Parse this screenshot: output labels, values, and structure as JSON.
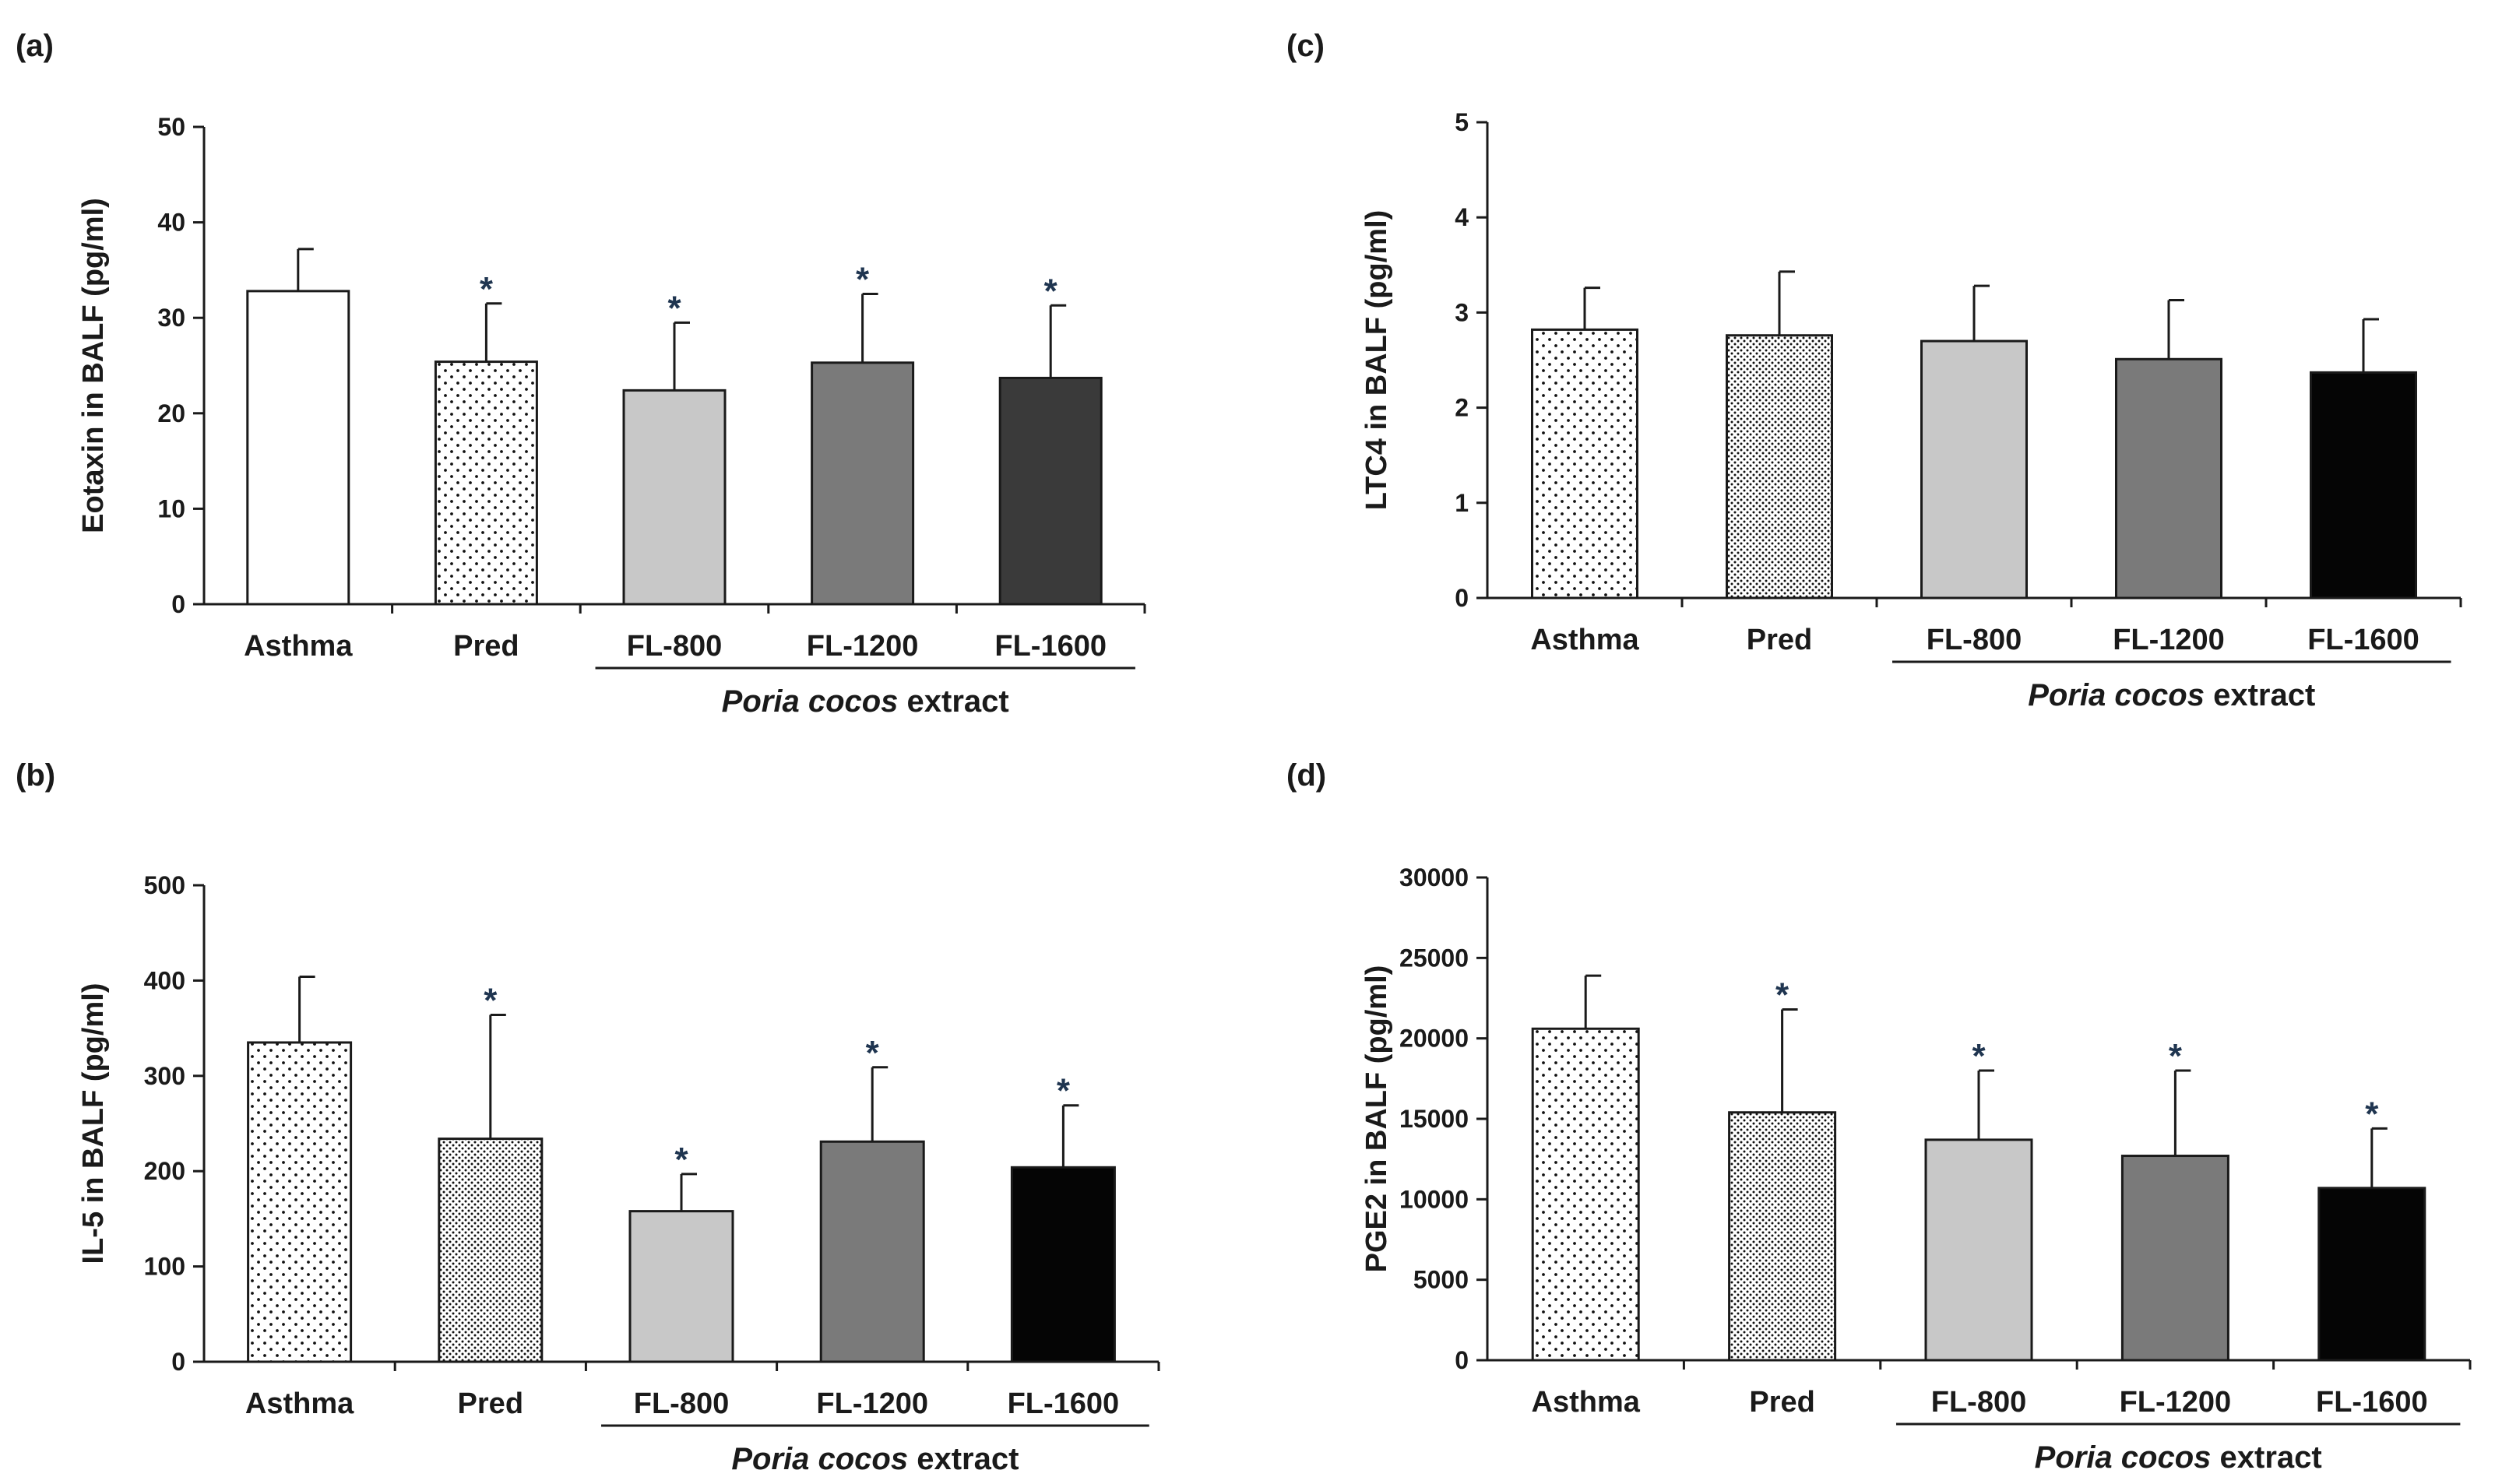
{
  "figure": {
    "groups": [
      "Asthma",
      "Pred",
      "FL-800",
      "FL-1200",
      "FL-1600"
    ],
    "extract_label_italic": "Poria cocos",
    "extract_label_rest": " extract",
    "significance_marker": "*",
    "colors": {
      "white": "#ffffff",
      "light_gray": "#c8c8c8",
      "mid_gray": "#7a7a7a",
      "dark_gray": "#3a3a3a",
      "black": "#050505",
      "star": "#1f3550"
    }
  },
  "chart_data": [
    {
      "panel": "(a)",
      "type": "bar",
      "ylabel": "Eotaxin in BALF (pg/ml)",
      "ylim": [
        0,
        50
      ],
      "yticks": [
        0,
        10,
        20,
        30,
        40,
        50
      ],
      "ytick_labels": [
        "0",
        "10",
        "20",
        "30",
        "40",
        "50"
      ],
      "categories": [
        "Asthma",
        "Pred",
        "FL-800",
        "FL-1200",
        "FL-1600"
      ],
      "values": [
        32.8,
        25.4,
        22.4,
        25.3,
        23.7
      ],
      "errors": [
        4.4,
        6.1,
        7.1,
        7.2,
        7.6
      ],
      "significant": [
        false,
        true,
        true,
        true,
        true
      ],
      "fills": [
        "white",
        "dots_sparse",
        "light_gray",
        "mid_gray",
        "dark_gray"
      ]
    },
    {
      "panel": "(b)",
      "type": "bar",
      "ylabel": "IL-5 in BALF (pg/ml)",
      "ylim": [
        0,
        500
      ],
      "yticks": [
        0,
        100,
        200,
        300,
        400,
        500
      ],
      "ytick_labels": [
        "0",
        "100",
        "200",
        "300",
        "400",
        "500"
      ],
      "categories": [
        "Asthma",
        "Pred",
        "FL-800",
        "FL-1200",
        "FL-1600"
      ],
      "values": [
        335,
        234,
        158,
        231,
        204
      ],
      "errors": [
        69,
        130,
        39,
        78,
        65
      ],
      "significant": [
        false,
        true,
        true,
        true,
        true
      ],
      "fills": [
        "dots_sparse",
        "dots_dense",
        "light_gray",
        "mid_gray",
        "black"
      ]
    },
    {
      "panel": "(c)",
      "type": "bar",
      "ylabel": "LTC4 in BALF (pg/ml)",
      "ylim": [
        0,
        5
      ],
      "yticks": [
        0,
        1,
        2,
        3,
        4,
        5
      ],
      "ytick_labels": [
        "0",
        "1",
        "2",
        "3",
        "4",
        "5"
      ],
      "categories": [
        "Asthma",
        "Pred",
        "FL-800",
        "FL-1200",
        "FL-1600"
      ],
      "values": [
        2.82,
        2.76,
        2.7,
        2.51,
        2.37
      ],
      "errors": [
        0.44,
        0.67,
        0.58,
        0.62,
        0.56
      ],
      "significant": [
        false,
        false,
        false,
        false,
        false
      ],
      "fills": [
        "dots_sparse",
        "dots_dense",
        "light_gray",
        "mid_gray",
        "black"
      ]
    },
    {
      "panel": "(d)",
      "type": "bar",
      "ylabel": "PGE2 in BALF (pg/ml)",
      "ylim": [
        0,
        30000
      ],
      "yticks": [
        0,
        5000,
        10000,
        15000,
        20000,
        25000,
        30000
      ],
      "ytick_labels": [
        "0",
        "5000",
        "10000",
        "15000",
        "20000",
        "25000",
        "30000"
      ],
      "categories": [
        "Asthma",
        "Pred",
        "FL-800",
        "FL-1200",
        "FL-1600"
      ],
      "values": [
        20600,
        15400,
        13700,
        12700,
        10700
      ],
      "errors": [
        3300,
        6400,
        4300,
        5300,
        3700
      ],
      "significant": [
        false,
        true,
        true,
        true,
        true
      ],
      "fills": [
        "dots_sparse",
        "dots_dense",
        "light_gray",
        "mid_gray",
        "black"
      ]
    }
  ]
}
